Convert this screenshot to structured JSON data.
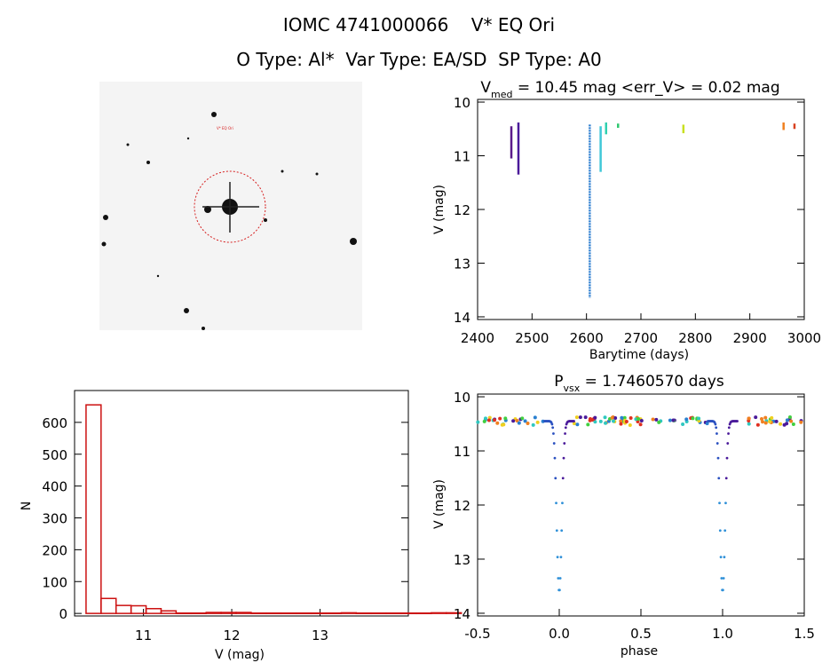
{
  "header": {
    "line1": "IOMC 4741000066    V* EQ Ori",
    "line2": "O Type: Al*  Var Type: EA/SD  SP Type: A0"
  },
  "finder": {
    "target_label": "V* EQ Ori",
    "colors": {
      "circle": "#d62020",
      "label": "#d62020",
      "corner_text": "#2030c0"
    }
  },
  "chart_data": [
    {
      "id": "lightcurve",
      "type": "scatter",
      "title": "V_med = 10.45 mag <err_V> = 0.02 mag",
      "title_main": "V",
      "title_sub": "med",
      "title_rest": " = 10.45 mag <err_V> = 0.02 mag",
      "xlabel": "Barytime (days)",
      "ylabel": "V (mag)",
      "xlim": [
        2400,
        3000
      ],
      "ylim": [
        14.05,
        9.95
      ],
      "xticks": [
        2400,
        2500,
        2600,
        2700,
        2800,
        2900,
        3000
      ],
      "yticks": [
        10,
        11,
        12,
        13,
        14
      ],
      "segments": [
        {
          "x": 2462,
          "ymin": 10.45,
          "ymax": 11.05,
          "color": "#5a1a8a"
        },
        {
          "x": 2475,
          "ymin": 10.38,
          "ymax": 11.35,
          "color": "#4a1a9a"
        },
        {
          "x": 2606,
          "ymin": 10.42,
          "ymax": 13.65,
          "color": "#2f7fd0"
        },
        {
          "x": 2626,
          "ymin": 10.45,
          "ymax": 11.3,
          "color": "#40c8d8"
        },
        {
          "x": 2636,
          "ymin": 10.38,
          "ymax": 10.6,
          "color": "#30d0b0"
        },
        {
          "x": 2658,
          "ymin": 10.4,
          "ymax": 10.48,
          "color": "#30c870"
        },
        {
          "x": 2778,
          "ymin": 10.42,
          "ymax": 10.58,
          "color": "#c8e020"
        },
        {
          "x": 2962,
          "ymin": 10.38,
          "ymax": 10.52,
          "color": "#f08020"
        },
        {
          "x": 2982,
          "ymin": 10.4,
          "ymax": 10.5,
          "color": "#d84020"
        }
      ]
    },
    {
      "id": "histogram",
      "type": "bar",
      "xlabel": "V (mag)",
      "ylabel": "N",
      "xlim": [
        10.22,
        14.0
      ],
      "ylim": [
        -8,
        700
      ],
      "xticks": [
        11,
        12,
        13
      ],
      "yticks": [
        0,
        100,
        200,
        300,
        400,
        500,
        600
      ],
      "bin_width": 0.17,
      "bin_start": 10.35,
      "values": [
        655,
        47,
        25,
        24,
        15,
        8,
        1,
        1,
        3,
        3,
        3,
        1,
        1,
        1,
        1,
        1,
        1,
        2,
        1,
        1,
        1,
        1,
        1,
        2,
        2
      ],
      "color": "#cc1111"
    },
    {
      "id": "phased",
      "type": "scatter",
      "title": "P_vsx = 1.7460570 days",
      "title_main": "P",
      "title_sub": "vsx",
      "title_rest": " = 1.7460570 days",
      "xlabel": "phase",
      "ylabel": "V (mag)",
      "xlim": [
        -0.5,
        1.5
      ],
      "ylim": [
        14.05,
        9.95
      ],
      "xticks": [
        -0.5,
        0.0,
        0.5,
        1.0,
        1.5
      ],
      "xtick_labels": [
        "-0.5",
        "0.0",
        "0.5",
        "1.0",
        "1.5"
      ],
      "yticks": [
        10,
        11,
        12,
        13,
        14
      ],
      "eclipse_depth": 13.6,
      "baseline": 10.45
    }
  ]
}
